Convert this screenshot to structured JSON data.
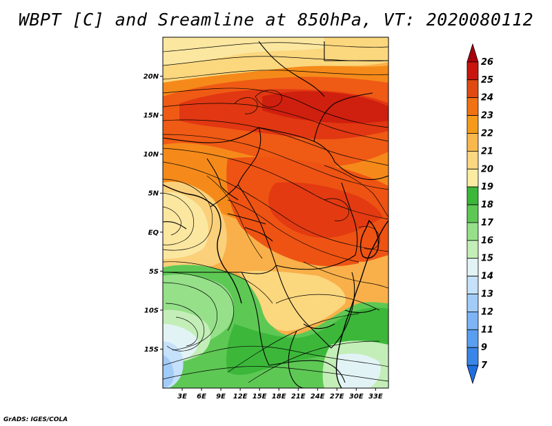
{
  "title": "WBPT [C] and Sreamline at 850hPa, VT: 2020080112",
  "footer": "GrADS: IGES/COLA",
  "map": {
    "lon_range": [
      0,
      35
    ],
    "lat_range": [
      -20,
      25
    ],
    "lon_ticks": [
      "3E",
      "6E",
      "9E",
      "12E",
      "15E",
      "18E",
      "21E",
      "24E",
      "27E",
      "30E",
      "33E"
    ],
    "lat_ticks": [
      "20N",
      "15N",
      "10N",
      "5N",
      "EQ",
      "5S",
      "10S",
      "15S"
    ]
  },
  "colorbar": {
    "levels": [
      "7",
      "9",
      "11",
      "12",
      "13",
      "14",
      "15",
      "16",
      "17",
      "18",
      "19",
      "20",
      "21",
      "22",
      "23",
      "24",
      "25",
      "26"
    ],
    "colors": [
      "#1f6fe0",
      "#3a86e8",
      "#5a9ef0",
      "#7cb4f5",
      "#a2ccf8",
      "#c6e1fb",
      "#e2f3f6",
      "#c4eeb8",
      "#96e08a",
      "#5ec855",
      "#3cb73a",
      "#fbeca2",
      "#fbd780",
      "#f9b84d",
      "#f59a1a",
      "#f17213",
      "#e04a12",
      "#c8160e",
      "#a8000b"
    ]
  }
}
